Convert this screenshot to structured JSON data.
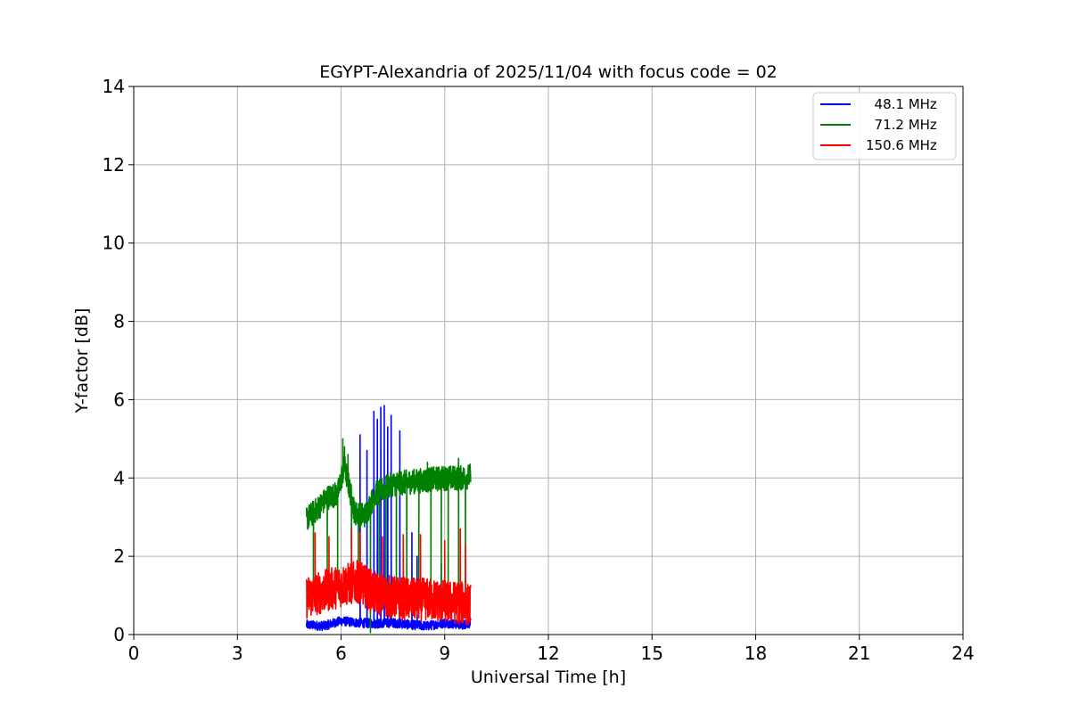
{
  "chart_data": {
    "type": "line",
    "title": "EGYPT-Alexandria of 2025/11/04 with focus code = 02",
    "xlabel": "Universal Time [h]",
    "ylabel": "Y-factor [dB]",
    "xlim": [
      0,
      24
    ],
    "ylim": [
      0,
      14
    ],
    "xticks": [
      0,
      3,
      6,
      9,
      12,
      15,
      18,
      21,
      24
    ],
    "yticks": [
      0,
      2,
      4,
      6,
      8,
      10,
      12,
      14
    ],
    "grid": true,
    "legend_position": "top-right",
    "series": [
      {
        "name": "48.1 MHz",
        "legend_label": "  48.1 MHz",
        "color": "#0000ff",
        "x_start": 5.0,
        "x_end": 9.75,
        "baseline": [
          [
            5.0,
            0.25
          ],
          [
            5.5,
            0.22
          ],
          [
            6.0,
            0.35
          ],
          [
            6.5,
            0.3
          ],
          [
            7.0,
            0.28
          ],
          [
            7.5,
            0.3
          ],
          [
            8.0,
            0.25
          ],
          [
            8.5,
            0.22
          ],
          [
            9.0,
            0.3
          ],
          [
            9.5,
            0.25
          ],
          [
            9.75,
            0.3
          ]
        ],
        "spread": 0.12,
        "spikes": [
          [
            6.55,
            5.1
          ],
          [
            6.75,
            4.7
          ],
          [
            6.95,
            5.7
          ],
          [
            7.05,
            5.5
          ],
          [
            7.15,
            5.8
          ],
          [
            7.25,
            5.85
          ],
          [
            7.35,
            5.3
          ],
          [
            7.45,
            5.6
          ],
          [
            7.7,
            5.2
          ],
          [
            8.05,
            2.6
          ],
          [
            8.2,
            2.0
          ],
          [
            8.9,
            1.8
          ],
          [
            9.5,
            1.1
          ]
        ]
      },
      {
        "name": "71.2 MHz",
        "legend_label": "  71.2 MHz",
        "color": "#008000",
        "x_start": 5.0,
        "x_end": 9.75,
        "baseline": [
          [
            5.0,
            2.95
          ],
          [
            5.3,
            3.2
          ],
          [
            5.6,
            3.5
          ],
          [
            5.9,
            3.6
          ],
          [
            6.1,
            4.3
          ],
          [
            6.4,
            3.1
          ],
          [
            6.7,
            3.05
          ],
          [
            7.0,
            3.6
          ],
          [
            7.5,
            3.85
          ],
          [
            8.0,
            3.9
          ],
          [
            8.5,
            3.95
          ],
          [
            9.0,
            4.0
          ],
          [
            9.5,
            4.0
          ],
          [
            9.75,
            4.05
          ]
        ],
        "spread": 0.32,
        "spikes": [
          [
            6.05,
            5.0
          ],
          [
            6.1,
            4.8
          ],
          [
            6.2,
            4.6
          ],
          [
            8.5,
            4.4
          ],
          [
            9.4,
            4.5
          ]
        ],
        "dips": [
          [
            5.2,
            1.0
          ],
          [
            5.6,
            1.5
          ],
          [
            5.9,
            1.3
          ],
          [
            6.3,
            2.2
          ],
          [
            6.5,
            0.9
          ],
          [
            6.85,
            0.05
          ],
          [
            7.1,
            1.5
          ],
          [
            7.3,
            1.0
          ],
          [
            7.6,
            1.2
          ],
          [
            7.9,
            1.0
          ],
          [
            8.25,
            1.1
          ],
          [
            8.6,
            1.3
          ],
          [
            8.9,
            0.8
          ],
          [
            9.1,
            1.0
          ],
          [
            9.4,
            1.2
          ],
          [
            9.6,
            1.0
          ]
        ]
      },
      {
        "name": "150.6 MHz",
        "legend_label": "150.6 MHz",
        "color": "#ff0000",
        "x_start": 5.0,
        "x_end": 9.75,
        "baseline": [
          [
            5.0,
            0.95
          ],
          [
            5.5,
            1.1
          ],
          [
            6.0,
            1.25
          ],
          [
            6.5,
            1.35
          ],
          [
            7.0,
            1.05
          ],
          [
            7.5,
            0.95
          ],
          [
            8.0,
            0.9
          ],
          [
            8.5,
            0.9
          ],
          [
            9.0,
            0.85
          ],
          [
            9.5,
            0.8
          ],
          [
            9.75,
            0.75
          ]
        ],
        "spread": 0.55,
        "spikes": [
          [
            5.25,
            2.6
          ],
          [
            5.65,
            2.5
          ],
          [
            6.3,
            2.7
          ],
          [
            6.55,
            2.6
          ],
          [
            7.2,
            2.5
          ],
          [
            7.8,
            2.55
          ],
          [
            8.3,
            2.55
          ],
          [
            9.0,
            2.4
          ],
          [
            9.45,
            2.7
          ],
          [
            9.6,
            2.3
          ]
        ]
      }
    ]
  }
}
